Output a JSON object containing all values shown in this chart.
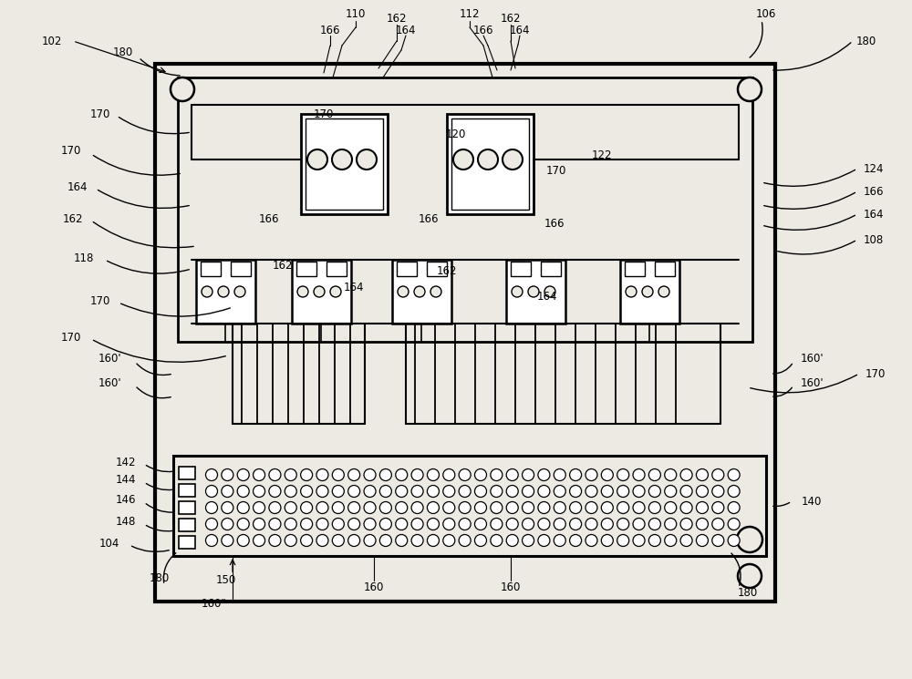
{
  "bg_color": "#ede9e3",
  "line_color": "#000000",
  "fig_width": 10.0,
  "fig_height": 7.45
}
